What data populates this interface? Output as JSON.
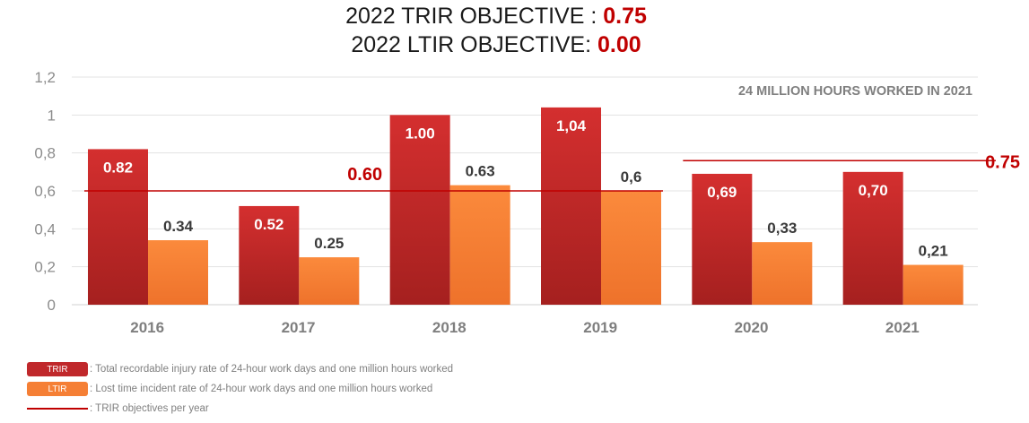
{
  "header": {
    "trir_label": "2022 TRIR OBJECTIVE : ",
    "trir_value": "0.75",
    "ltir_label": "2022 LTIR OBJECTIVE: ",
    "ltir_value": "0.00"
  },
  "colors": {
    "trir": "#c0282b",
    "ltir": "#f57f35",
    "objective": "#c00000",
    "grid": "#e3e3e3",
    "tick": "#8c8c8c"
  },
  "chart_data": {
    "type": "bar",
    "categories": [
      "2016",
      "2017",
      "2018",
      "2019",
      "2020",
      "2021"
    ],
    "series": [
      {
        "name": "TRIR",
        "values": [
          0.82,
          0.52,
          1.0,
          1.04,
          0.69,
          0.7
        ],
        "labels": [
          "0.82",
          "0.52",
          "1.00",
          "1,04",
          "0,69",
          "0,70"
        ]
      },
      {
        "name": "LTIR",
        "values": [
          0.34,
          0.25,
          0.63,
          0.6,
          0.33,
          0.21
        ],
        "labels": [
          "0.34",
          "0.25",
          "0.63",
          "0,6",
          "0,33",
          "0,21"
        ]
      }
    ],
    "ylim": [
      0,
      1.2
    ],
    "yticks": [
      0,
      0.2,
      0.4,
      0.6,
      0.8,
      1,
      1.2
    ],
    "ytick_labels": [
      "0",
      "0,2",
      "0,4",
      "0,6",
      "0,8",
      "1",
      "1,2"
    ],
    "grid": true,
    "annotation": "24 MILLION HOURS WORKED IN 2021",
    "objectives": [
      {
        "value": 0.6,
        "label": "0.60",
        "from": "2016",
        "to": "2019"
      },
      {
        "value": 0.75,
        "label": "0.75",
        "from": "2020",
        "to": "2021"
      }
    ]
  },
  "legend": [
    {
      "badge": "TRIR",
      "text": ": Total recordable injury rate of 24-hour work days and one million hours worked"
    },
    {
      "badge": "LTIR",
      "text": ": Lost time incident rate of 24-hour work days and one million hours worked"
    },
    {
      "badge": "",
      "text": ": TRIR objectives per year"
    }
  ]
}
